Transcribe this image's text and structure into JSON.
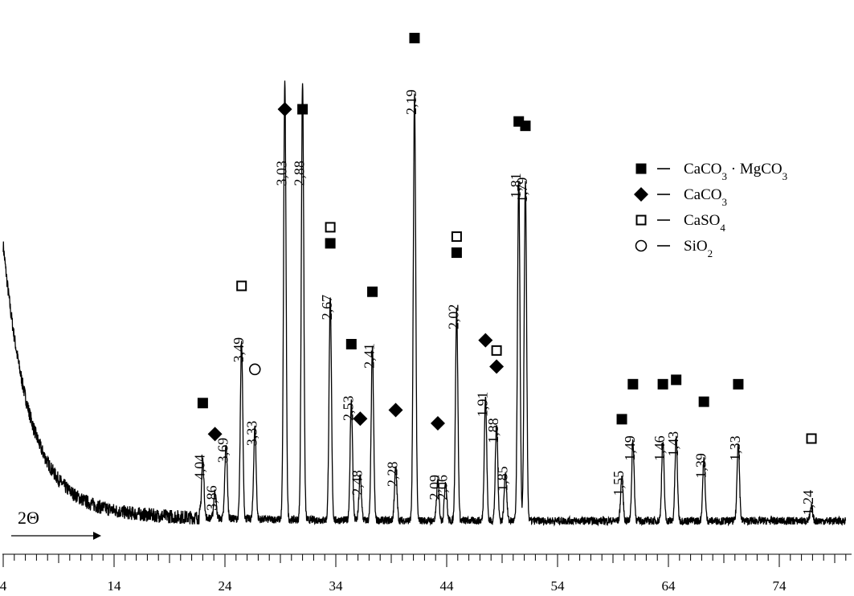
{
  "chart_data": {
    "type": "line",
    "title": "",
    "xlabel": "2Θ",
    "ylabel": "",
    "xlim": [
      4,
      80
    ],
    "x_ticks": [
      4,
      14,
      24,
      34,
      44,
      54,
      64,
      74
    ],
    "x_tick_labels": [
      "4",
      "14",
      "24",
      "34",
      "44",
      "54",
      "64",
      "74"
    ],
    "grid": false,
    "legend": {
      "placement": "top-right",
      "entries": [
        {
          "marker": "filled-square",
          "label": "CaCO3 · MgCO3",
          "formula": "CaCO",
          "sub1": "3",
          "mid": " · MgCO",
          "sub2": "3"
        },
        {
          "marker": "filled-diamond",
          "label": "CaCO3",
          "formula": "CaCO",
          "sub1": "3",
          "mid": "",
          "sub2": ""
        },
        {
          "marker": "open-square",
          "label": "CaSO4",
          "formula": "CaSO",
          "sub1": "4",
          "mid": "",
          "sub2": ""
        },
        {
          "marker": "open-circle",
          "label": "SiO2",
          "formula": "SiO",
          "sub1": "2",
          "mid": "",
          "sub2": ""
        }
      ]
    },
    "peaks": [
      {
        "two_theta": 22.0,
        "intensity": 13,
        "d_label": "4,04",
        "markers": [
          "filled-square"
        ]
      },
      {
        "two_theta": 23.1,
        "intensity": 6,
        "d_label": "3,86",
        "markers": [
          "filled-diamond"
        ]
      },
      {
        "two_theta": 24.1,
        "intensity": 17,
        "d_label": "3,69",
        "markers": []
      },
      {
        "two_theta": 25.5,
        "intensity": 40,
        "d_label": "3,49",
        "markers": [
          "open-square"
        ]
      },
      {
        "two_theta": 26.7,
        "intensity": 21,
        "d_label": "3,33",
        "markers": [
          "open-circle"
        ]
      },
      {
        "two_theta": 29.4,
        "intensity": 100,
        "d_label": "3,03",
        "markers": [
          "filled-diamond"
        ]
      },
      {
        "two_theta": 31.0,
        "intensity": 100,
        "d_label": "2,88",
        "markers": [
          "filled-square"
        ]
      },
      {
        "two_theta": 33.5,
        "intensity": 50,
        "d_label": "2,67",
        "markers": [
          "filled-square",
          "open-square"
        ]
      },
      {
        "two_theta": 35.4,
        "intensity": 27,
        "d_label": "2,53",
        "markers": [
          "filled-square"
        ]
      },
      {
        "two_theta": 36.2,
        "intensity": 10,
        "d_label": "2,48",
        "markers": [
          "filled-diamond"
        ]
      },
      {
        "two_theta": 37.3,
        "intensity": 39,
        "d_label": "2,41",
        "markers": [
          "filled-square"
        ]
      },
      {
        "two_theta": 39.4,
        "intensity": 12,
        "d_label": "2,28",
        "markers": [
          "filled-diamond"
        ]
      },
      {
        "two_theta": 41.1,
        "intensity": 97,
        "d_label": "2,19",
        "markers": [
          "filled-square"
        ]
      },
      {
        "two_theta": 43.2,
        "intensity": 9,
        "d_label": "2,09",
        "markers": [
          "filled-diamond"
        ]
      },
      {
        "two_theta": 43.9,
        "intensity": 9,
        "d_label": "2,06",
        "markers": []
      },
      {
        "two_theta": 44.9,
        "intensity": 48,
        "d_label": "2,02",
        "markers": [
          "filled-square",
          "open-square"
        ]
      },
      {
        "two_theta": 47.5,
        "intensity": 28,
        "d_label": "1,91",
        "markers": [
          "filled-diamond"
        ]
      },
      {
        "two_theta": 48.5,
        "intensity": 22,
        "d_label": "1,88",
        "markers": [
          "filled-diamond",
          "open-square"
        ]
      },
      {
        "two_theta": 49.3,
        "intensity": 11,
        "d_label": "1,85",
        "markers": []
      },
      {
        "two_theta": 50.5,
        "intensity": 78,
        "d_label": "1,81",
        "markers": [
          "filled-square"
        ]
      },
      {
        "two_theta": 51.1,
        "intensity": 77,
        "d_label": "1,79",
        "markers": [
          "filled-square"
        ]
      },
      {
        "two_theta": 59.8,
        "intensity": 10,
        "d_label": "1,55",
        "markers": [
          "filled-square"
        ]
      },
      {
        "two_theta": 60.8,
        "intensity": 18,
        "d_label": "1,49",
        "markers": [
          "filled-square"
        ]
      },
      {
        "two_theta": 63.5,
        "intensity": 18,
        "d_label": "1,46",
        "markers": [
          "filled-square"
        ]
      },
      {
        "two_theta": 64.7,
        "intensity": 19,
        "d_label": "1,43",
        "markers": [
          "filled-square"
        ]
      },
      {
        "two_theta": 67.2,
        "intensity": 14,
        "d_label": "1,39",
        "markers": [
          "filled-square"
        ]
      },
      {
        "two_theta": 70.3,
        "intensity": 18,
        "d_label": "1,33",
        "markers": [
          "filled-square"
        ]
      },
      {
        "two_theta": 76.9,
        "intensity": 3,
        "d_label": "1,24",
        "markers": [
          "open-square"
        ]
      }
    ]
  }
}
